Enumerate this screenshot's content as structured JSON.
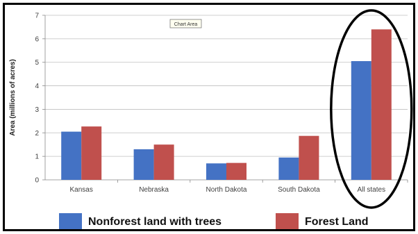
{
  "chart_data": {
    "type": "bar",
    "categories": [
      "Kansas",
      "Nebraska",
      "North Dakota",
      "South Dakota",
      "All states"
    ],
    "series": [
      {
        "name": "Nonforest land with trees",
        "color": "#4472C4",
        "values": [
          2.05,
          1.3,
          0.7,
          0.95,
          5.05
        ]
      },
      {
        "name": "Forest Land",
        "color": "#C0504D",
        "values": [
          2.27,
          1.5,
          0.72,
          1.87,
          6.4
        ]
      }
    ],
    "ylabel": "Area (millions of acres)",
    "ylim": [
      0,
      7
    ],
    "yticks": [
      0,
      1,
      2,
      3,
      4,
      5,
      6,
      7
    ],
    "grid": true,
    "legend_position": "bottom",
    "highlighted_category": "All states",
    "tooltip": "Chart Area"
  }
}
